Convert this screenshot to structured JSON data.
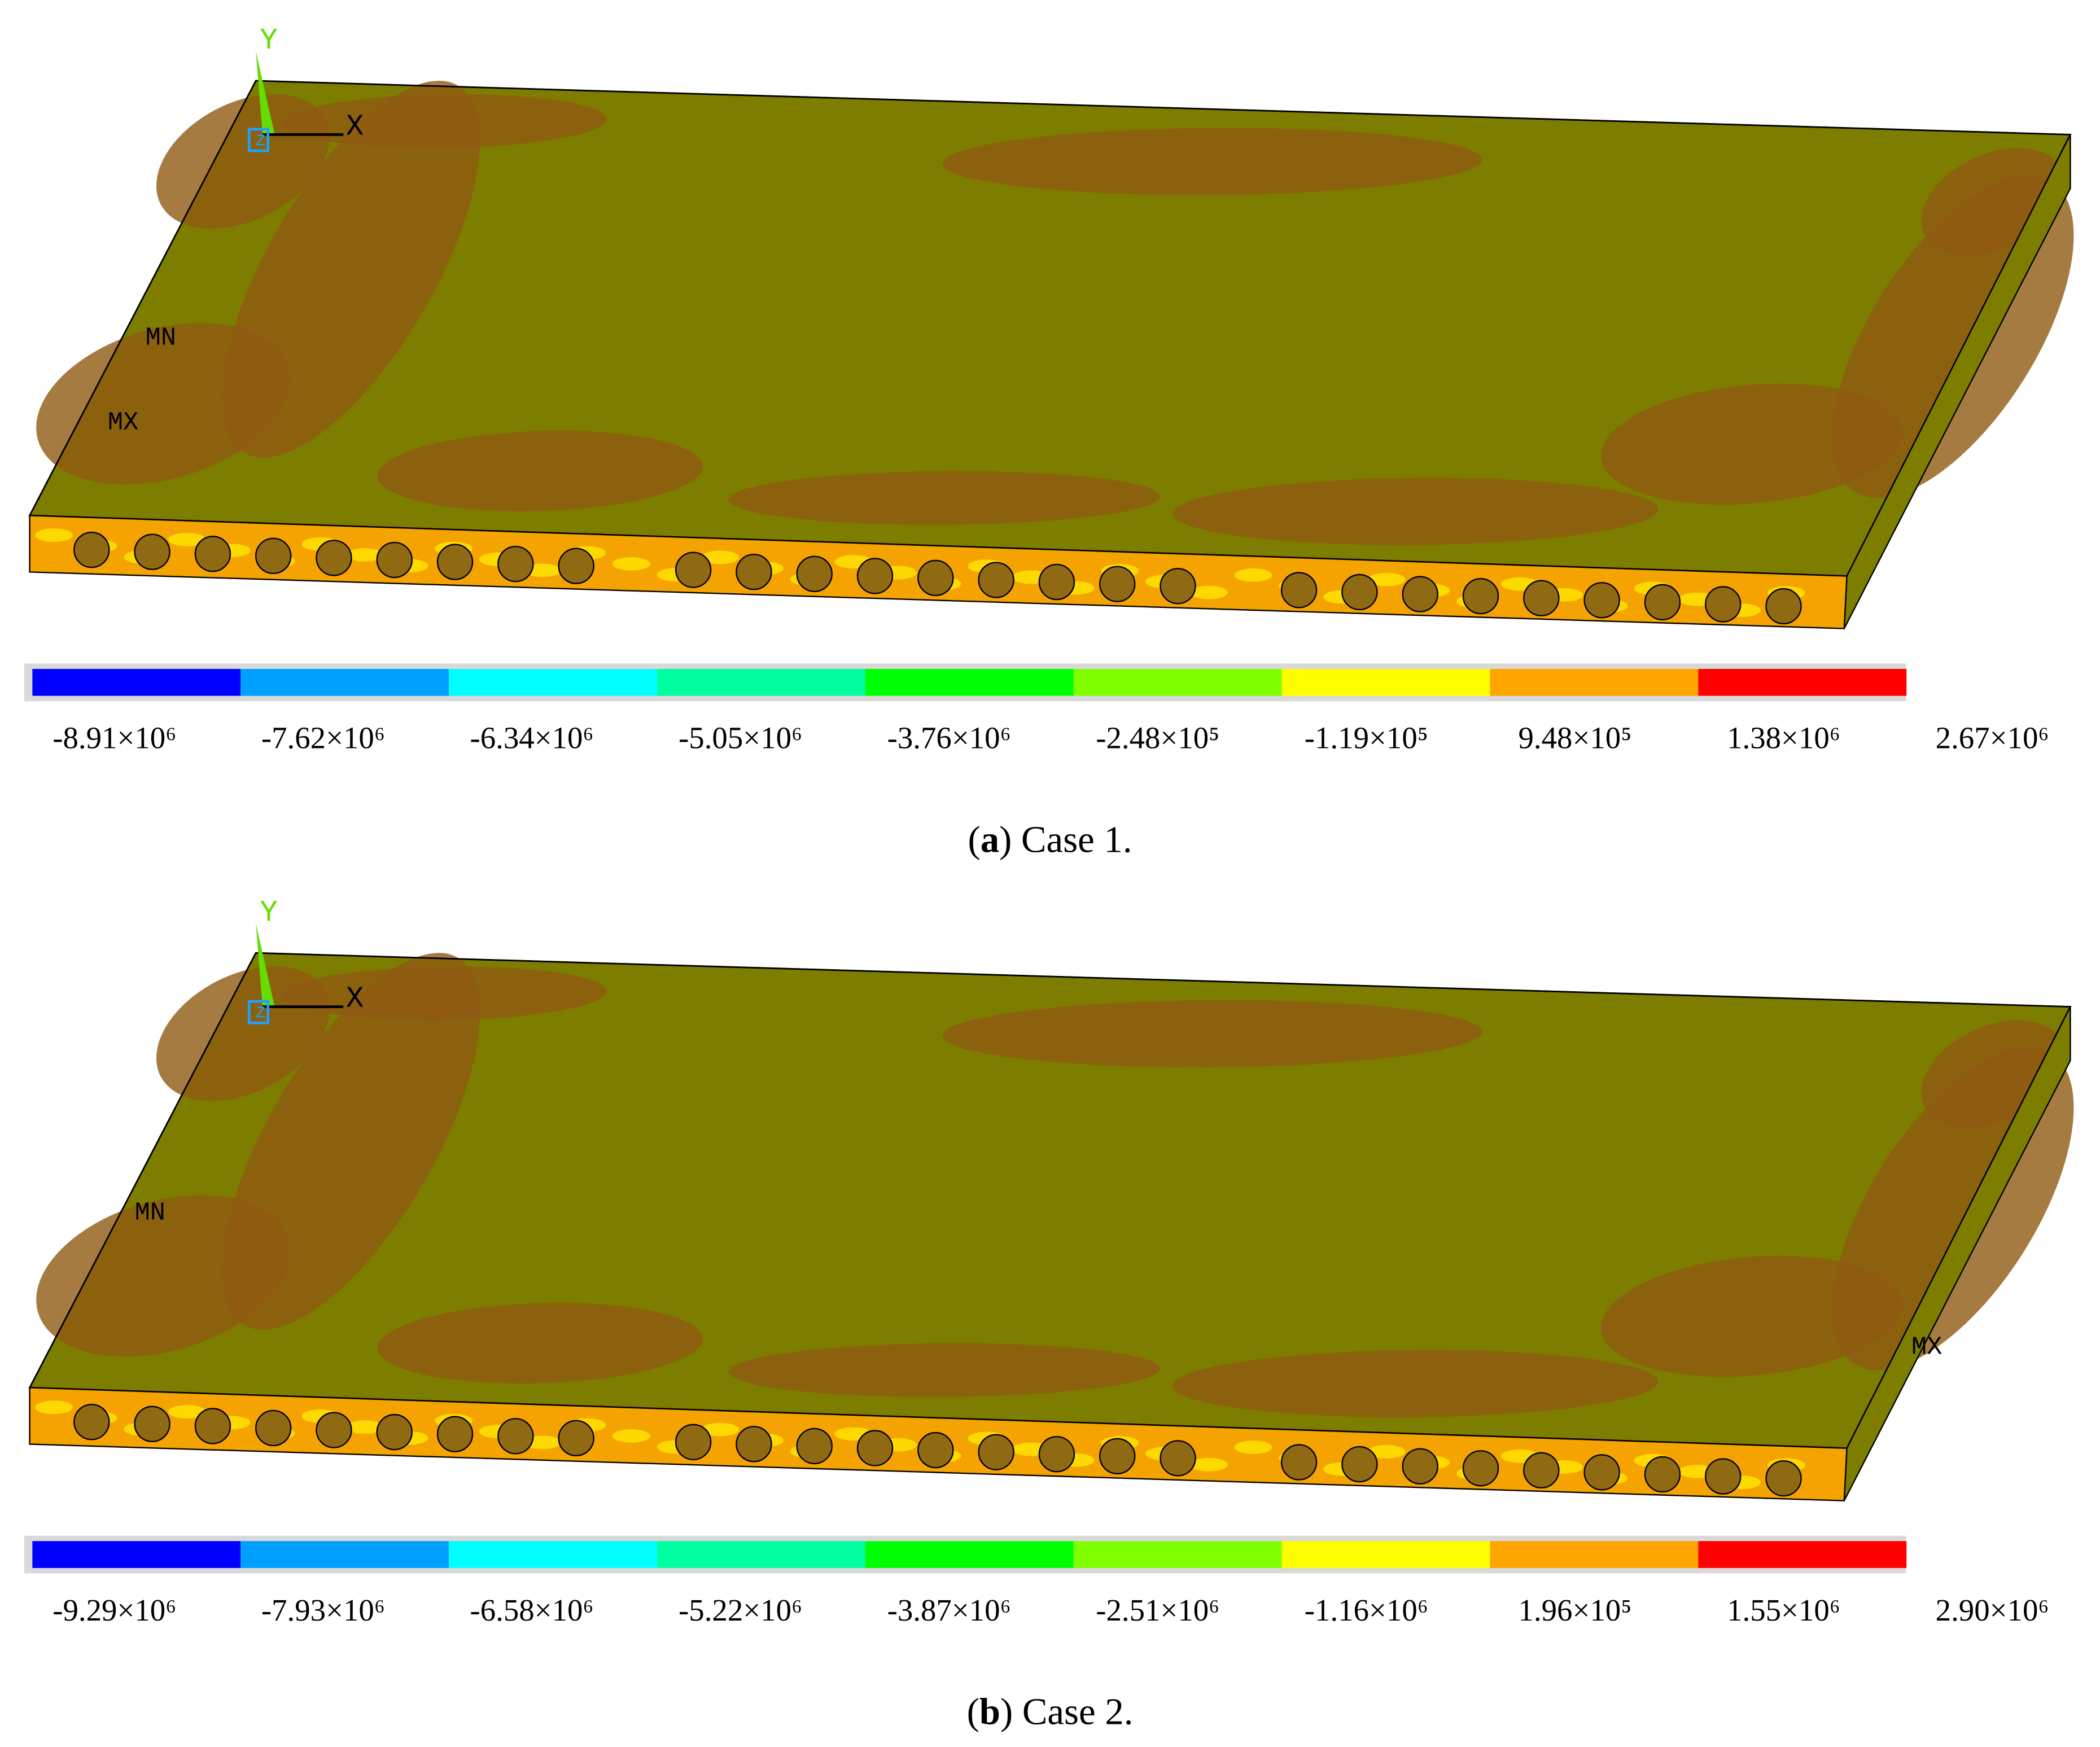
{
  "panels": [
    {
      "triad": {
        "y": "Y",
        "x": "X",
        "z": "Z"
      },
      "markers": {
        "mn": "MN",
        "mx": "MX"
      },
      "legend": [
        "-8.91×10⁶",
        "-7.62×10⁶",
        "-6.34×10⁶",
        "-5.05×10⁶",
        "-3.76×10⁶",
        "-2.48×10⁵",
        "-1.19×10⁵",
        "9.48×10⁵",
        "1.38×10⁶",
        "2.67×10⁶"
      ],
      "caption": {
        "prefix": "(",
        "label": "a",
        "suffix": ") Case 1."
      }
    },
    {
      "triad": {
        "y": "Y",
        "x": "X",
        "z": "Z"
      },
      "markers": {
        "mn": "MN",
        "mx": "MX"
      },
      "legend": [
        "-9.29×10⁶",
        "-7.93×10⁶",
        "-6.58×10⁶",
        "-5.22×10⁶",
        "-3.87×10⁶",
        "-2.51×10⁶",
        "-1.16×10⁶",
        "1.96×10⁵",
        "1.55×10⁶",
        "2.90×10⁶"
      ],
      "caption": {
        "prefix": "(",
        "label": "b",
        "suffix": ") Case 2."
      }
    }
  ]
}
